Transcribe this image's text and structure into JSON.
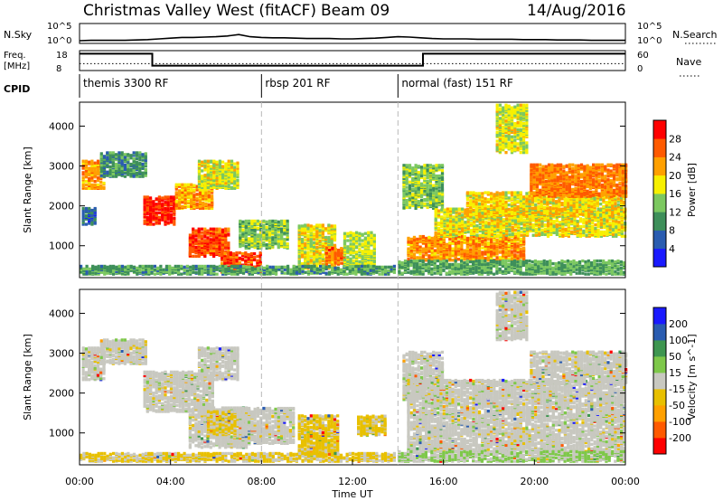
{
  "header": {
    "station": "Christmas Valley West (fitACF)",
    "beam": "Beam 09",
    "date": "14/Aug/2016"
  },
  "colors": {
    "power_scale": [
      "#1a1aff",
      "#2a5cb0",
      "#3e8f5a",
      "#7cc860",
      "#f7f000",
      "#ffa000",
      "#ff5a00",
      "#ff0000"
    ],
    "velocity_scale": [
      "#ff0000",
      "#ff5a00",
      "#ffa000",
      "#e8c000",
      "#c8c8c0",
      "#7ec84a",
      "#3e9650",
      "#2a5cb0",
      "#1a1aff"
    ],
    "ground_scatter": "#c8c8c0"
  },
  "chart_data": [
    {
      "type": "line",
      "name": "noise-panel",
      "left_label": "N.Sky",
      "right_label": "N.Search",
      "left_ticks": [
        "10^5",
        "10^0"
      ],
      "right_ticks": [
        "10^5",
        "10^0"
      ],
      "x_hours": [
        0,
        0.5,
        1,
        1.5,
        2,
        2.5,
        3,
        3.5,
        4,
        4.5,
        5,
        5.5,
        6,
        6.5,
        7,
        7.5,
        8,
        8.5,
        9,
        9.5,
        10,
        10.5,
        11,
        11.5,
        12,
        12.5,
        13,
        13.5,
        14,
        14.5,
        15,
        15.5,
        16,
        16.5,
        17,
        17.5,
        18,
        18.5,
        19,
        19.5,
        20,
        20.5,
        21,
        21.5,
        22,
        22.5,
        23,
        23.5,
        24
      ],
      "n_sky_log": [
        0.5,
        0.6,
        0.6,
        0.6,
        0.6,
        0.7,
        0.8,
        1.0,
        1.2,
        1.4,
        1.4,
        1.5,
        1.6,
        1.8,
        2.2,
        1.6,
        1.4,
        1.3,
        1.3,
        1.2,
        1.1,
        1.1,
        1.1,
        1.0,
        1.0,
        1.1,
        1.2,
        1.4,
        1.6,
        1.5,
        1.3,
        1.1,
        1.0,
        1.0,
        1.0,
        0.9,
        0.9,
        0.9,
        0.9,
        0.8,
        0.8,
        0.8,
        0.7,
        0.7,
        0.7,
        0.6,
        0.6,
        0.6,
        0.6
      ]
    },
    {
      "type": "line",
      "name": "frequency-panel",
      "left_label": [
        "Freq.",
        "[MHz]"
      ],
      "right_label": "Nave",
      "left_ticks": [
        "18",
        "8"
      ],
      "right_ticks": [
        "60",
        "0"
      ],
      "freq_mhz_steps": [
        {
          "start": 0,
          "end": 3.2,
          "value": 16.8
        },
        {
          "start": 3.2,
          "end": 15.1,
          "value": 10.2
        },
        {
          "start": 15.1,
          "end": 24,
          "value": 16.8
        }
      ],
      "nave_level": 20
    },
    {
      "type": "table",
      "name": "cpid-bar",
      "label": "CPID",
      "segments": [
        {
          "start": 0,
          "end": 8,
          "label": "themis 3300 RF"
        },
        {
          "start": 8,
          "end": 14,
          "label": "rbsp 201 RF"
        },
        {
          "start": 14,
          "end": 24,
          "label": "normal (fast) 151 RF"
        }
      ]
    },
    {
      "type": "heatmap",
      "name": "power",
      "ylabel": "Slant Range [km]",
      "xlim": [
        0,
        24
      ],
      "ylim": [
        200,
        4600
      ],
      "yticks": [
        "1000",
        "2000",
        "3000",
        "4000"
      ],
      "colorbar_label": "Power [dB]",
      "colorbar_ticks": [
        "28",
        "24",
        "20",
        "16",
        "12",
        "8",
        "4"
      ],
      "colorbar_range": [
        0,
        32
      ],
      "regions": [
        {
          "x0": 0.1,
          "x1": 1.1,
          "y0": 2400,
          "y1": 3100,
          "v": 22
        },
        {
          "x0": 0.9,
          "x1": 2.9,
          "y0": 2700,
          "y1": 3300,
          "v": 10
        },
        {
          "x0": 0.1,
          "x1": 0.7,
          "y0": 1500,
          "y1": 1900,
          "v": 7
        },
        {
          "x0": 2.8,
          "x1": 4.2,
          "y0": 1500,
          "y1": 2200,
          "v": 29
        },
        {
          "x0": 4.2,
          "x1": 5.8,
          "y0": 1900,
          "y1": 2500,
          "v": 22
        },
        {
          "x0": 5.2,
          "x1": 7.0,
          "y0": 2400,
          "y1": 3100,
          "v": 17
        },
        {
          "x0": 4.8,
          "x1": 6.6,
          "y0": 700,
          "y1": 1400,
          "v": 27
        },
        {
          "x0": 6.2,
          "x1": 8.0,
          "y0": 300,
          "y1": 800,
          "v": 27
        },
        {
          "x0": 7.0,
          "x1": 9.2,
          "y0": 900,
          "y1": 1600,
          "v": 14
        },
        {
          "x0": 9.6,
          "x1": 11.2,
          "y0": 400,
          "y1": 1500,
          "v": 18
        },
        {
          "x0": 10.8,
          "x1": 11.6,
          "y0": 500,
          "y1": 900,
          "v": 25
        },
        {
          "x0": 11.6,
          "x1": 13.0,
          "y0": 300,
          "y1": 1300,
          "v": 16
        },
        {
          "x0": 0.0,
          "x1": 13.8,
          "y0": 250,
          "y1": 450,
          "v": 11
        },
        {
          "x0": 14.2,
          "x1": 16.0,
          "y0": 1900,
          "y1": 3000,
          "v": 14
        },
        {
          "x0": 14.4,
          "x1": 19.5,
          "y0": 600,
          "y1": 1200,
          "v": 23
        },
        {
          "x0": 15.6,
          "x1": 24.0,
          "y0": 1200,
          "y1": 1900,
          "v": 18
        },
        {
          "x0": 17.0,
          "x1": 24.0,
          "y0": 1700,
          "y1": 2300,
          "v": 19
        },
        {
          "x0": 19.8,
          "x1": 24.0,
          "y0": 2200,
          "y1": 3000,
          "v": 24
        },
        {
          "x0": 18.3,
          "x1": 19.6,
          "y0": 3300,
          "y1": 4500,
          "v": 17
        },
        {
          "x0": 14.0,
          "x1": 24.0,
          "y0": 250,
          "y1": 600,
          "v": 12
        }
      ]
    },
    {
      "type": "heatmap",
      "name": "velocity",
      "ylabel": "Slant Range [km]",
      "xlabel": "Time UT",
      "xlim": [
        0,
        24
      ],
      "ylim": [
        200,
        4600
      ],
      "xticks": [
        "00:00",
        "04:00",
        "08:00",
        "12:00",
        "16:00",
        "20:00",
        "00:00"
      ],
      "yticks": [
        "1000",
        "2000",
        "3000",
        "4000"
      ],
      "colorbar_label": "Velocity [m s^-1]",
      "colorbar_ticks": [
        "200",
        "100",
        "50",
        "15",
        "-15",
        "-50",
        "-100",
        "-200"
      ],
      "colorbar_range": [
        -250,
        250
      ],
      "regions": [
        {
          "x0": 0.1,
          "x1": 1.1,
          "y0": 2300,
          "y1": 3100,
          "v": 0
        },
        {
          "x0": 0.9,
          "x1": 2.9,
          "y0": 2700,
          "y1": 3300,
          "v": 0
        },
        {
          "x0": 2.8,
          "x1": 5.8,
          "y0": 1500,
          "y1": 2500,
          "v": 0
        },
        {
          "x0": 5.2,
          "x1": 7.0,
          "y0": 2300,
          "y1": 3100,
          "v": 0
        },
        {
          "x0": 4.8,
          "x1": 7.4,
          "y0": 600,
          "y1": 1600,
          "v": 0
        },
        {
          "x0": 5.6,
          "x1": 6.8,
          "y0": 900,
          "y1": 1500,
          "v": -40
        },
        {
          "x0": 7.0,
          "x1": 9.4,
          "y0": 700,
          "y1": 1600,
          "v": 0
        },
        {
          "x0": 9.6,
          "x1": 11.4,
          "y0": 400,
          "y1": 1400,
          "v": -45
        },
        {
          "x0": 0.0,
          "x1": 13.8,
          "y0": 250,
          "y1": 450,
          "v": -35
        },
        {
          "x0": 12.2,
          "x1": 13.4,
          "y0": 900,
          "y1": 1400,
          "v": -40
        },
        {
          "x0": 14.2,
          "x1": 16.0,
          "y0": 1800,
          "y1": 3000,
          "v": 0
        },
        {
          "x0": 14.4,
          "x1": 24.0,
          "y0": 500,
          "y1": 2300,
          "v": 0
        },
        {
          "x0": 19.8,
          "x1": 24.0,
          "y0": 2200,
          "y1": 3000,
          "v": 0
        },
        {
          "x0": 18.3,
          "x1": 19.6,
          "y0": 3300,
          "y1": 4500,
          "v": 0
        },
        {
          "x0": 14.0,
          "x1": 24.0,
          "y0": 250,
          "y1": 500,
          "v": 30
        }
      ]
    }
  ]
}
